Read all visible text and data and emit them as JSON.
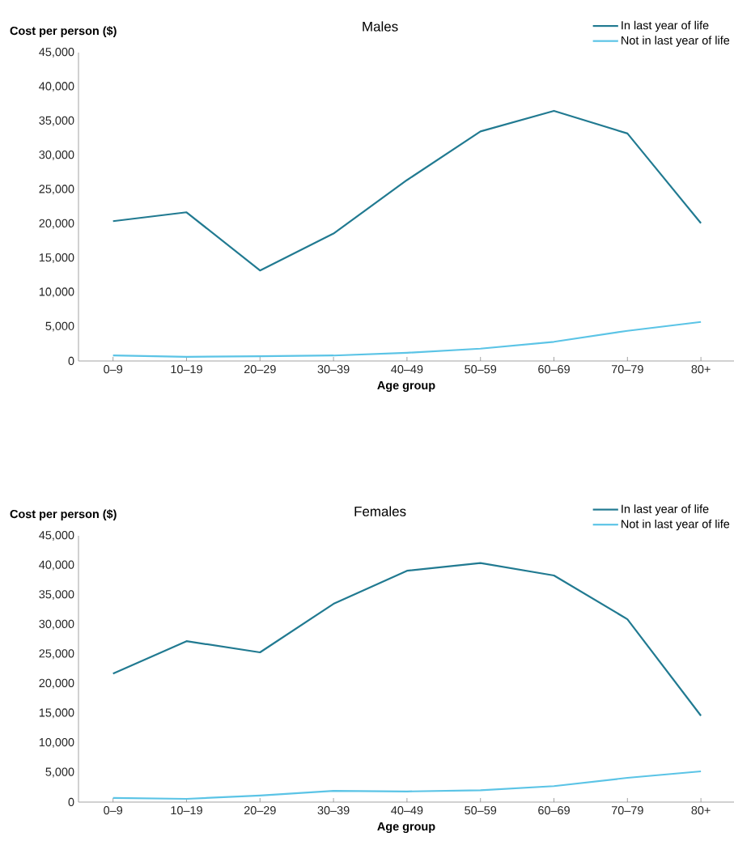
{
  "chart_data": [
    {
      "type": "line",
      "title": "Males",
      "xlabel": "Age group",
      "ylabel": "Cost per person ($)",
      "categories": [
        "0–9",
        "10–19",
        "20–29",
        "30–39",
        "40–49",
        "50–59",
        "60–69",
        "70–79",
        "80+"
      ],
      "series": [
        {
          "name": "In last year of life",
          "color": "#217a91",
          "values": [
            20400,
            21700,
            13200,
            18600,
            26400,
            33500,
            36500,
            33200,
            20100
          ]
        },
        {
          "name": "Not in last year of life",
          "color": "#5bc4e6",
          "values": [
            800,
            600,
            700,
            800,
            1200,
            1800,
            2800,
            4400,
            5700
          ]
        }
      ],
      "ylim": [
        0,
        45000
      ],
      "yticks": [
        0,
        {
          "value": 5000,
          "label": "5,000"
        },
        {
          "value": 10000,
          "label": "10,000"
        },
        {
          "value": 15000,
          "label": "15,000"
        },
        {
          "value": 20000,
          "label": "20,000"
        },
        {
          "value": 25000,
          "label": "25,000"
        },
        {
          "value": 30000,
          "label": "30,000"
        },
        {
          "value": 35000,
          "label": "35,000"
        },
        {
          "value": 40000,
          "label": "40,000"
        },
        {
          "value": 45000,
          "label": "45,000"
        }
      ],
      "legend": "top right",
      "marker": "none",
      "line_style": "solid"
    },
    {
      "type": "line",
      "title": "Females",
      "xlabel": "Age group",
      "ylabel": "Cost per person ($)",
      "categories": [
        "0–9",
        "10–19",
        "20–29",
        "30–39",
        "40–49",
        "50–59",
        "60–69",
        "70–79",
        "80+"
      ],
      "series": [
        {
          "name": "In last year of life",
          "color": "#217a91",
          "values": [
            21700,
            27200,
            25300,
            33500,
            39100,
            40400,
            38300,
            30900,
            14600
          ]
        },
        {
          "name": "Not in last year of life",
          "color": "#5bc4e6",
          "values": [
            700,
            550,
            1100,
            1900,
            1800,
            2000,
            2700,
            4100,
            5200
          ]
        }
      ],
      "ylim": [
        0,
        45000
      ],
      "yticks": [
        0,
        {
          "value": 5000,
          "label": "5,000"
        },
        {
          "value": 10000,
          "label": "10,000"
        },
        {
          "value": 15000,
          "label": "15,000"
        },
        {
          "value": 20000,
          "label": "20,000"
        },
        {
          "value": 25000,
          "label": "25,000"
        },
        {
          "value": 30000,
          "label": "30,000"
        },
        {
          "value": 35000,
          "label": "35,000"
        },
        {
          "value": 40000,
          "label": "40,000"
        },
        {
          "value": 45000,
          "label": "45,000"
        }
      ],
      "legend": "top right",
      "marker": "none",
      "line_style": "solid"
    }
  ]
}
